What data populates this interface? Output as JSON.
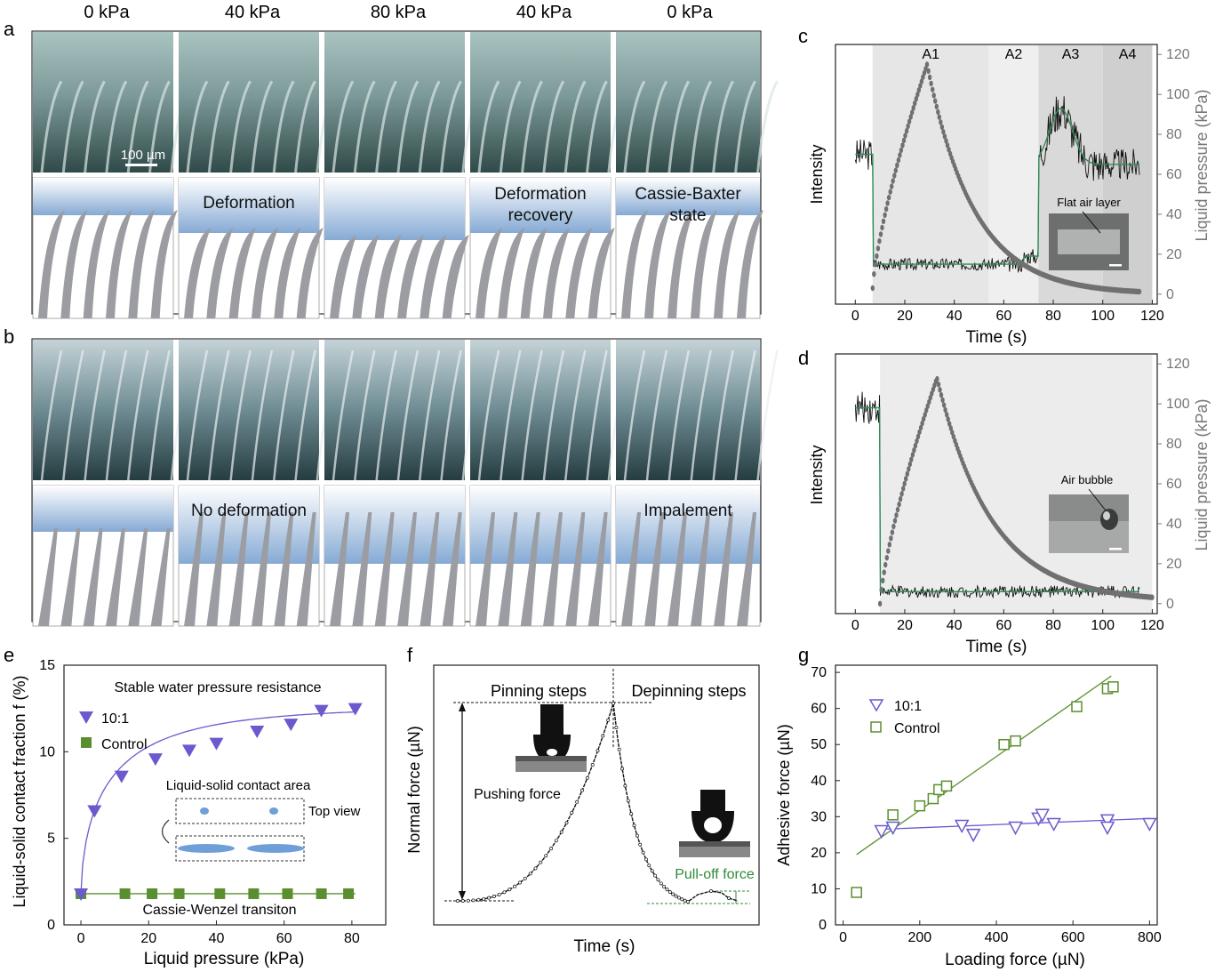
{
  "panels": {
    "a": "a",
    "b": "b",
    "c": "c",
    "d": "d",
    "e": "e",
    "f": "f",
    "g": "g"
  },
  "pressure_headers": [
    "0 kPa",
    "40 kPa",
    "80 kPa",
    "40 kPa",
    "0 kPa"
  ],
  "row_a": {
    "scale_bar": "100 µm",
    "labels": [
      "",
      "Deformation",
      "",
      "Deformation\nrecovery",
      "Cassie-Baxter\nstate"
    ]
  },
  "row_b": {
    "labels": [
      "",
      "No deformation",
      "",
      "",
      "Impalement"
    ]
  },
  "colors": {
    "water": "#8fb3d8",
    "fibre": "#9a9ba0",
    "purple": "#6a5acd",
    "green": "#5a8f2f",
    "signal_green": "#2e8b57",
    "grey_dots": "#707070"
  },
  "chart_data": [
    {
      "id": "c",
      "type": "line",
      "xlabel": "Time (s)",
      "ylabel_left": "Intensity",
      "ylabel_right": "Liquid pressure (kPa)",
      "xlim": [
        -8,
        122
      ],
      "ylim_right": [
        -5,
        125
      ],
      "xticks": [
        0,
        20,
        40,
        60,
        80,
        100,
        120
      ],
      "yticks_right": [
        0,
        20,
        40,
        60,
        80,
        100,
        120
      ],
      "regions": [
        {
          "name": "A1",
          "x": [
            7,
            54
          ]
        },
        {
          "name": "A2",
          "x": [
            54,
            74
          ]
        },
        {
          "name": "A3",
          "x": [
            74,
            100
          ]
        },
        {
          "name": "A4",
          "x": [
            100,
            120
          ]
        }
      ],
      "pressure_series": {
        "peak_x": 29,
        "peak_y": 115,
        "start_x": 7,
        "start_y": 3,
        "end_x": 115,
        "end_y": 0
      },
      "intensity_levels": {
        "initial": 70,
        "low": 15,
        "A3_peak": 93,
        "A3_base": 65
      },
      "inset_label": "Flat air layer"
    },
    {
      "id": "d",
      "type": "line",
      "xlabel": "Time (s)",
      "ylabel_left": "Intensity",
      "ylabel_right": "Liquid pressure (kPa)",
      "xlim": [
        -8,
        122
      ],
      "ylim_right": [
        -5,
        125
      ],
      "xticks": [
        0,
        20,
        40,
        60,
        80,
        100,
        120
      ],
      "yticks_right": [
        0,
        20,
        40,
        60,
        80,
        100,
        120
      ],
      "pressure_series": {
        "peak_x": 33,
        "peak_y": 113,
        "start_x": 10,
        "start_y": 0,
        "end_x": 120,
        "end_y": 1
      },
      "intensity_levels": {
        "initial": 98,
        "low": 6
      },
      "inset_label": "Air bubble"
    },
    {
      "id": "e",
      "type": "scatter",
      "xlabel": "Liquid pressure (kPa)",
      "ylabel": "Liquid-solid contact fraction f (%)",
      "xlim": [
        -5,
        90
      ],
      "ylim": [
        0,
        15
      ],
      "xticks": [
        0,
        20,
        40,
        60,
        80
      ],
      "yticks": [
        0,
        5,
        10,
        15
      ],
      "series": [
        {
          "name": "10:1",
          "x": [
            0,
            4,
            12,
            22,
            32,
            40,
            52,
            62,
            71,
            81
          ],
          "y": [
            1.8,
            6.6,
            8.6,
            9.6,
            10.1,
            10.5,
            11.2,
            11.6,
            12.4,
            12.5
          ]
        },
        {
          "name": "Control",
          "x": [
            0,
            13,
            21,
            29,
            41,
            51,
            61,
            71,
            79
          ],
          "y": [
            1.8,
            1.8,
            1.8,
            1.8,
            1.8,
            1.8,
            1.8,
            1.8,
            1.8
          ]
        }
      ],
      "annotations": [
        "Stable water pressure resistance",
        "Liquid-solid contact area",
        "Top view",
        "Cassie-Wenzel transiton"
      ]
    },
    {
      "id": "f",
      "type": "line",
      "xlabel": "Time (s)",
      "ylabel": "Normal force (µN)",
      "annotations": [
        "Pinning steps",
        "Depinning steps",
        "Pushing force",
        "Pull-off force"
      ]
    },
    {
      "id": "g",
      "type": "scatter",
      "xlabel": "Loading force (µN)",
      "ylabel": "Adhesive force (µN)",
      "xlim": [
        -20,
        820
      ],
      "ylim": [
        0,
        72
      ],
      "xticks": [
        0,
        200,
        400,
        600,
        800
      ],
      "yticks": [
        0,
        10,
        20,
        30,
        40,
        50,
        60,
        70
      ],
      "series": [
        {
          "name": "10:1",
          "x": [
            100,
            130,
            310,
            340,
            450,
            510,
            520,
            550,
            690,
            690,
            800
          ],
          "y": [
            26,
            27,
            27.5,
            25,
            27,
            29.5,
            30.5,
            28,
            29,
            27,
            28
          ]
        },
        {
          "name": "Control",
          "x": [
            35,
            130,
            200,
            235,
            250,
            270,
            420,
            450,
            610,
            690,
            705
          ],
          "y": [
            9,
            30.5,
            33,
            35,
            37.5,
            38.5,
            50,
            51,
            60.5,
            65.5,
            66
          ]
        }
      ],
      "fits": [
        {
          "series": "10:1",
          "x": [
            100,
            800
          ],
          "y": [
            26.5,
            29.5
          ]
        },
        {
          "series": "Control",
          "x": [
            35,
            700
          ],
          "y": [
            19.5,
            69
          ]
        }
      ]
    }
  ]
}
